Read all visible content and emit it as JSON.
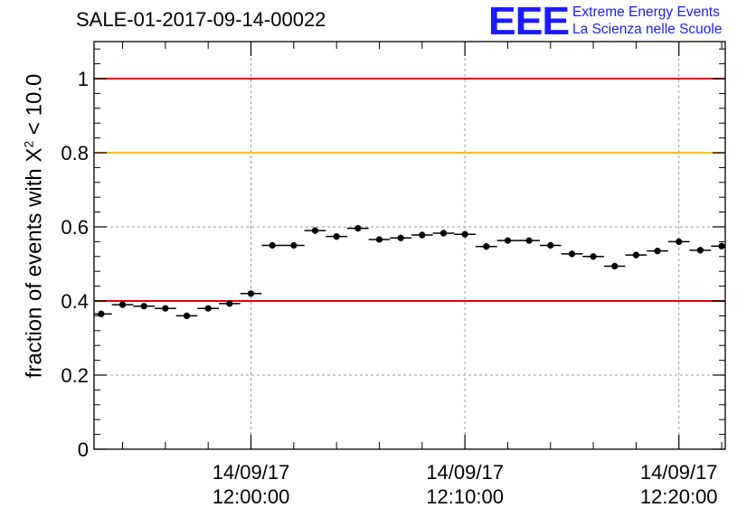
{
  "header": {
    "run_title": "SALE-01-2017-09-14-00022"
  },
  "logo": {
    "mark": "EEE",
    "line1": "Extreme Energy Events",
    "line2": "La Scienza nelle Scuole"
  },
  "chart_data": {
    "type": "scatter",
    "ylabel_prefix": "fraction of events with X",
    "ylabel_sup": "2",
    "ylabel_suffix": " < 10.0",
    "xlabel": "",
    "ylim": [
      0,
      1.1
    ],
    "xlim_minutes": [
      -7.3333,
      22.1667
    ],
    "grid": true,
    "y_ticks": [
      {
        "value": 0,
        "label": "0"
      },
      {
        "value": 0.2,
        "label": "0.2"
      },
      {
        "value": 0.4,
        "label": "0.4"
      },
      {
        "value": 0.6,
        "label": "0.6"
      },
      {
        "value": 0.8,
        "label": "0.8"
      },
      {
        "value": 1,
        "label": "1"
      }
    ],
    "x_ticks": [
      {
        "minutes": 0,
        "date": "14/09/17",
        "time": "12:00:00"
      },
      {
        "minutes": 10,
        "date": "14/09/17",
        "time": "12:10:00"
      },
      {
        "minutes": 20,
        "date": "14/09/17",
        "time": "12:20:00"
      }
    ],
    "reference_lines": [
      {
        "y": 1.0,
        "color": "#e8000b"
      },
      {
        "y": 0.8,
        "color": "#ffc000"
      },
      {
        "y": 0.4,
        "color": "#e8000b"
      }
    ],
    "marker_color": "#000000",
    "bin_width_minutes": 1.0,
    "x_minutes": [
      -7.0,
      -6.0,
      -5.0,
      -4.0,
      -3.0,
      -2.0,
      -1.0,
      0.0,
      1.0,
      2.0,
      3.0,
      4.0,
      5.0,
      6.0,
      7.0,
      8.0,
      9.0,
      10.0,
      11.0,
      12.0,
      13.0,
      14.0,
      15.0,
      16.0,
      17.0,
      18.0,
      19.0,
      20.0,
      21.0,
      22.0
    ],
    "y": [
      0.365,
      0.39,
      0.386,
      0.38,
      0.36,
      0.38,
      0.393,
      0.42,
      0.55,
      0.55,
      0.59,
      0.574,
      0.596,
      0.566,
      0.57,
      0.578,
      0.583,
      0.58,
      0.547,
      0.563,
      0.563,
      0.55,
      0.527,
      0.52,
      0.494,
      0.524,
      0.535,
      0.56,
      0.537,
      0.548
    ],
    "y_err": [
      0.009,
      0.008,
      0.008,
      0.008,
      0.008,
      0.008,
      0.008,
      0.008,
      0.009,
      0.008,
      0.009,
      0.009,
      0.009,
      0.008,
      0.009,
      0.009,
      0.009,
      0.009,
      0.009,
      0.008,
      0.008,
      0.009,
      0.009,
      0.009,
      0.009,
      0.009,
      0.009,
      0.009,
      0.009,
      0.009
    ]
  }
}
